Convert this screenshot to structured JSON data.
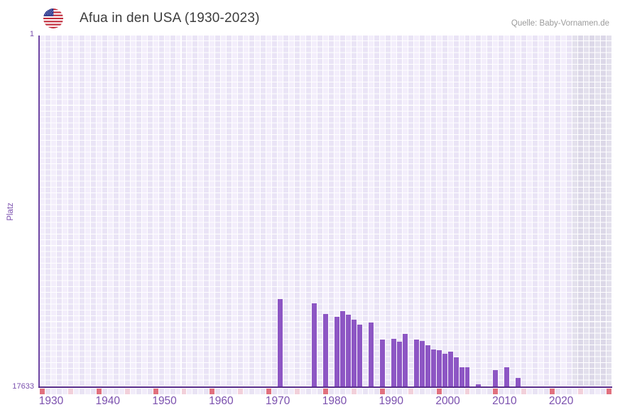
{
  "header": {
    "title": "Afua in den USA (1930-2023)",
    "source": "Quelle: Baby-Vornamen.de",
    "flag_icon": "us-flag-icon"
  },
  "y_axis": {
    "label": "Platz",
    "top_tick": "1",
    "bottom_tick": "17633"
  },
  "chart_data": {
    "type": "bar",
    "title": "Afua in den USA (1930-2023)",
    "ylabel": "Platz",
    "y_min": 1,
    "y_max": 17633,
    "y_inverted": true,
    "x_start_year": 1928,
    "x_end_year": 2028,
    "x_tick_years": [
      "1930",
      "1940",
      "1950",
      "1960",
      "1970",
      "1980",
      "1990",
      "2000",
      "2010",
      "2020"
    ],
    "series": [
      {
        "name": "Platz",
        "points": [
          {
            "year": 1970,
            "rank": 13250
          },
          {
            "year": 1976,
            "rank": 13460
          },
          {
            "year": 1978,
            "rank": 13980
          },
          {
            "year": 1980,
            "rank": 14120
          },
          {
            "year": 1981,
            "rank": 13840
          },
          {
            "year": 1982,
            "rank": 14040
          },
          {
            "year": 1983,
            "rank": 14270
          },
          {
            "year": 1984,
            "rank": 14520
          },
          {
            "year": 1986,
            "rank": 14420
          },
          {
            "year": 1988,
            "rank": 15260
          },
          {
            "year": 1990,
            "rank": 15230
          },
          {
            "year": 1991,
            "rank": 15400
          },
          {
            "year": 1992,
            "rank": 14980
          },
          {
            "year": 1994,
            "rank": 15260
          },
          {
            "year": 1995,
            "rank": 15340
          },
          {
            "year": 1996,
            "rank": 15570
          },
          {
            "year": 1997,
            "rank": 15770
          },
          {
            "year": 1998,
            "rank": 15830
          },
          {
            "year": 1999,
            "rank": 15990
          },
          {
            "year": 2000,
            "rank": 15900
          },
          {
            "year": 2001,
            "rank": 16180
          },
          {
            "year": 2002,
            "rank": 16680
          },
          {
            "year": 2003,
            "rank": 16680
          },
          {
            "year": 2005,
            "rank": 17530
          },
          {
            "year": 2008,
            "rank": 16820
          },
          {
            "year": 2010,
            "rank": 16680
          },
          {
            "year": 2012,
            "rank": 17190
          }
        ]
      }
    ],
    "timeline_markers": {
      "red_years": [
        1928,
        1938,
        1948,
        1958,
        1968,
        1978,
        1988,
        1998,
        2008,
        2018,
        2028
      ],
      "pink_years": [
        1933,
        1943,
        1953,
        1963,
        1973,
        1983,
        1993,
        2003,
        2013,
        2023
      ]
    },
    "shaded_region_start_year": 2022,
    "colors": {
      "bar": "#8d56c4",
      "axis_x": "#572b8a",
      "axis_y": "#6f46a4",
      "tick_label": "#7b50ae",
      "title_text": "#3d3d3d",
      "source_text": "#9b9b9b",
      "cell_light_even": "#f3eefb",
      "cell_light_odd": "#eae4f6",
      "cell_dark_even": "#e3e0ed",
      "cell_dark_odd": "#dcd8e8",
      "marker_red": "#e0707e",
      "marker_pink": "#f2d0da"
    }
  }
}
